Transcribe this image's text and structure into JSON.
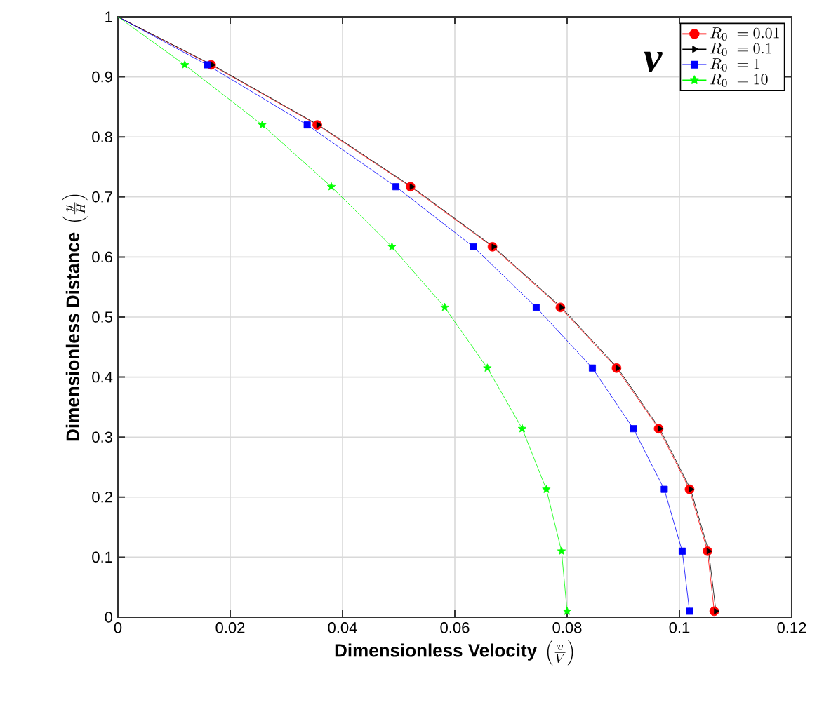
{
  "chart_data": {
    "type": "line",
    "xlabel": "\\textbf{Dimensionless Velocity}\\ \\left(\\frac{v}{V}\\right)",
    "ylabel": "\\textbf{Dimensionless Distance}\\ \\left(\\frac{y}{H}\\right)",
    "annotations": [
      "v"
    ],
    "series": [
      {
        "name": "R_0\\ = 0.01",
        "color": "#ff0000",
        "marker": "circle",
        "x": [
          0,
          0.0166,
          0.0355,
          0.0521,
          0.0667,
          0.0788,
          0.0888,
          0.0963,
          0.1018,
          0.105,
          0.1062
        ],
        "values": [
          1,
          0.92,
          0.82,
          0.717,
          0.617,
          0.516,
          0.415,
          0.314,
          0.213,
          0.11,
          0.01
        ]
      },
      {
        "name": "R_0\\ = 0.1",
        "color": "#000000",
        "marker": "triangle",
        "x": [
          0,
          0.0168,
          0.0357,
          0.0523,
          0.0669,
          0.079,
          0.089,
          0.0965,
          0.102,
          0.1052,
          0.1065
        ],
        "values": [
          1,
          0.92,
          0.82,
          0.717,
          0.617,
          0.516,
          0.415,
          0.314,
          0.213,
          0.11,
          0.01
        ]
      },
      {
        "name": "R_0\\ = 1",
        "color": "#0000ff",
        "marker": "square",
        "x": [
          0,
          0.0159,
          0.0337,
          0.0495,
          0.0633,
          0.0745,
          0.0845,
          0.0918,
          0.0973,
          0.1005,
          0.1018
        ],
        "values": [
          1,
          0.92,
          0.82,
          0.717,
          0.617,
          0.516,
          0.415,
          0.314,
          0.213,
          0.11,
          0.01
        ]
      },
      {
        "name": "R_0\\ = 10",
        "color": "#00ff00",
        "marker": "star",
        "x": [
          0,
          0.0119,
          0.0257,
          0.038,
          0.0488,
          0.0582,
          0.0658,
          0.072,
          0.0763,
          0.079,
          0.08
        ],
        "values": [
          1,
          0.92,
          0.82,
          0.717,
          0.617,
          0.516,
          0.415,
          0.314,
          0.213,
          0.11,
          0.01
        ]
      }
    ],
    "xlim": [
      0,
      0.12
    ],
    "ylim": [
      0,
      1
    ],
    "xticks": [
      0,
      0.02,
      0.04,
      0.06,
      0.08,
      0.1,
      0.12
    ],
    "yticks": [
      0,
      0.1,
      0.2,
      0.3,
      0.4,
      0.5,
      0.6,
      0.7,
      0.8,
      0.9,
      1
    ],
    "grid": true,
    "legend": "top right",
    "line_style": "solid"
  }
}
